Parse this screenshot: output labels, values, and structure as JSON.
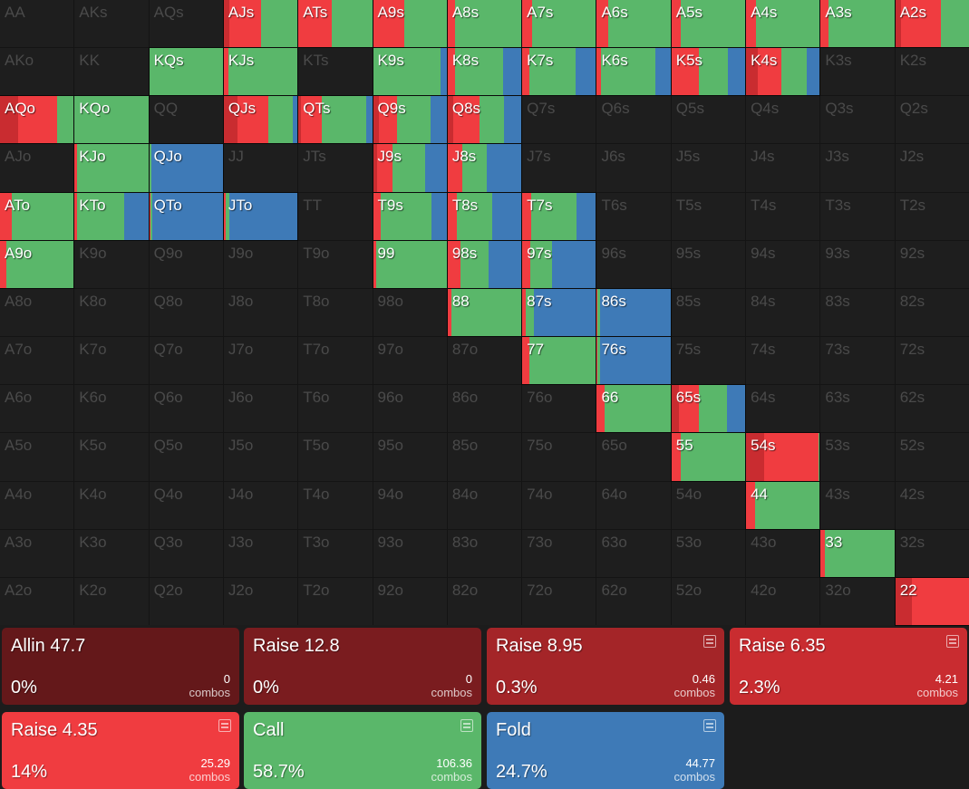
{
  "hands": [
    [
      "AA",
      "AKs",
      "AQs",
      "AJs",
      "ATs",
      "A9s",
      "A8s",
      "A7s",
      "A6s",
      "A5s",
      "A4s",
      "A3s",
      "A2s"
    ],
    [
      "AKo",
      "KK",
      "KQs",
      "KJs",
      "KTs",
      "K9s",
      "K8s",
      "K7s",
      "K6s",
      "K5s",
      "K4s",
      "K3s",
      "K2s"
    ],
    [
      "AQo",
      "KQo",
      "QQ",
      "QJs",
      "QTs",
      "Q9s",
      "Q8s",
      "Q7s",
      "Q6s",
      "Q5s",
      "Q4s",
      "Q3s",
      "Q2s"
    ],
    [
      "AJo",
      "KJo",
      "QJo",
      "JJ",
      "JTs",
      "J9s",
      "J8s",
      "J7s",
      "J6s",
      "J5s",
      "J4s",
      "J3s",
      "J2s"
    ],
    [
      "ATo",
      "KTo",
      "QTo",
      "JTo",
      "TT",
      "T9s",
      "T8s",
      "T7s",
      "T6s",
      "T5s",
      "T4s",
      "T3s",
      "T2s"
    ],
    [
      "A9o",
      "K9o",
      "Q9o",
      "J9o",
      "T9o",
      "99",
      "98s",
      "97s",
      "96s",
      "95s",
      "94s",
      "93s",
      "92s"
    ],
    [
      "A8o",
      "K8o",
      "Q8o",
      "J8o",
      "T8o",
      "98o",
      "88",
      "87s",
      "86s",
      "85s",
      "84s",
      "83s",
      "82s"
    ],
    [
      "A7o",
      "K7o",
      "Q7o",
      "J7o",
      "T7o",
      "97o",
      "87o",
      "77",
      "76s",
      "75s",
      "74s",
      "73s",
      "72s"
    ],
    [
      "A6o",
      "K6o",
      "Q6o",
      "J6o",
      "T6o",
      "96o",
      "86o",
      "76o",
      "66",
      "65s",
      "64s",
      "63s",
      "62s"
    ],
    [
      "A5o",
      "K5o",
      "Q5o",
      "J5o",
      "T5o",
      "95o",
      "85o",
      "75o",
      "65o",
      "55",
      "54s",
      "53s",
      "52s"
    ],
    [
      "A4o",
      "K4o",
      "Q4o",
      "J4o",
      "T4o",
      "94o",
      "84o",
      "74o",
      "64o",
      "54o",
      "44",
      "43s",
      "42s"
    ],
    [
      "A3o",
      "K3o",
      "Q3o",
      "J3o",
      "T3o",
      "93o",
      "83o",
      "73o",
      "63o",
      "53o",
      "43o",
      "33",
      "32s"
    ],
    [
      "A2o",
      "K2o",
      "Q2o",
      "J2o",
      "T2o",
      "92o",
      "82o",
      "72o",
      "62o",
      "52o",
      "42o",
      "32o",
      "22"
    ]
  ],
  "strategy_order": [
    "raise_6_35",
    "raise_4_35",
    "call",
    "fold"
  ],
  "strategy_colors": [
    "#c92c30",
    "#f03c40",
    "#5ab76a",
    "#3e7ab7"
  ],
  "strategies": {
    "AJs": [
      0.07,
      0.44,
      0.49,
      0
    ],
    "ATs": [
      0,
      0.45,
      0.55,
      0
    ],
    "A9s": [
      0,
      0.43,
      0.57,
      0
    ],
    "A8s": [
      0,
      0.1,
      0.9,
      0
    ],
    "A7s": [
      0,
      0.13,
      0.87,
      0
    ],
    "A6s": [
      0,
      0.16,
      0.84,
      0
    ],
    "A5s": [
      0,
      0.13,
      0.87,
      0
    ],
    "A4s": [
      0,
      0.13,
      0.87,
      0
    ],
    "A3s": [
      0,
      0.11,
      0.89,
      0
    ],
    "A2s": [
      0.08,
      0.54,
      0.38,
      0
    ],
    "KQs": [
      0,
      0.01,
      0.99,
      0
    ],
    "KJs": [
      0,
      0.06,
      0.94,
      0
    ],
    "K9s": [
      0,
      0,
      0.92,
      0.08
    ],
    "K8s": [
      0,
      0.1,
      0.65,
      0.25
    ],
    "K7s": [
      0,
      0.1,
      0.63,
      0.27
    ],
    "K6s": [
      0,
      0.06,
      0.74,
      0.2
    ],
    "K5s": [
      0,
      0.37,
      0.39,
      0.24
    ],
    "K4s": [
      0.16,
      0.32,
      0.34,
      0.18
    ],
    "AQo": [
      0.25,
      0.52,
      0.23,
      0
    ],
    "KQo": [
      0,
      0,
      1,
      0
    ],
    "QJs": [
      0.19,
      0.41,
      0.33,
      0.07
    ],
    "QTs": [
      0.03,
      0.29,
      0.6,
      0.08
    ],
    "Q9s": [
      0.08,
      0.25,
      0.45,
      0.22
    ],
    "Q8s": [
      0.07,
      0.36,
      0.33,
      0.24
    ],
    "KJo": [
      0,
      0.03,
      0.97,
      0
    ],
    "QJo": [
      0,
      0.01,
      0.02,
      0.97
    ],
    "J9s": [
      0.05,
      0.21,
      0.45,
      0.29
    ],
    "J8s": [
      0,
      0.2,
      0.33,
      0.47
    ],
    "ATo": [
      0,
      0.16,
      0.84,
      0
    ],
    "KTo": [
      0,
      0.03,
      0.64,
      0.33
    ],
    "QTo": [
      0,
      0.02,
      0.02,
      0.96
    ],
    "JTo": [
      0,
      0.02,
      0.06,
      0.92
    ],
    "T9s": [
      0,
      0.11,
      0.68,
      0.21
    ],
    "T8s": [
      0,
      0.12,
      0.49,
      0.39
    ],
    "T7s": [
      0,
      0.12,
      0.62,
      0.26
    ],
    "A9o": [
      0,
      0.08,
      0.92,
      0
    ],
    "99": [
      0,
      0.04,
      0.96,
      0
    ],
    "98s": [
      0,
      0.18,
      0.38,
      0.44
    ],
    "97s": [
      0,
      0.11,
      0.3,
      0.59
    ],
    "88": [
      0,
      0.05,
      0.95,
      0
    ],
    "87s": [
      0,
      0.05,
      0.11,
      0.84
    ],
    "86s": [
      0,
      0.01,
      0.03,
      0.96
    ],
    "77": [
      0,
      0.1,
      0.9,
      0
    ],
    "76s": [
      0,
      0.01,
      0.03,
      0.96
    ],
    "66": [
      0,
      0.1,
      0.9,
      0
    ],
    "65s": [
      0.1,
      0.27,
      0.38,
      0.25
    ],
    "55": [
      0,
      0.13,
      0.87,
      0
    ],
    "54s": [
      0.24,
      0.74,
      0.02,
      0
    ],
    "44": [
      0,
      0.12,
      0.88,
      0
    ],
    "33": [
      0,
      0.06,
      0.94,
      0
    ],
    "22": [
      0.22,
      0.78,
      0,
      0
    ]
  },
  "actions": [
    {
      "name": "Allin 47.7",
      "pct": "0%",
      "combos": "0",
      "unit": "combos",
      "color": "#64181a",
      "icon": "stats-icon",
      "show_icon": false
    },
    {
      "name": "Raise 12.8",
      "pct": "0%",
      "combos": "0",
      "unit": "combos",
      "color": "#7a1c1f",
      "icon": "stats-icon",
      "show_icon": false
    },
    {
      "name": "Raise 8.95",
      "pct": "0.3%",
      "combos": "0.46",
      "unit": "combos",
      "color": "#a42528",
      "icon": "stats-icon",
      "show_icon": true
    },
    {
      "name": "Raise 6.35",
      "pct": "2.3%",
      "combos": "4.21",
      "unit": "combos",
      "color": "#c92c30",
      "icon": "stats-icon",
      "show_icon": true
    },
    {
      "name": "Raise 4.35",
      "pct": "14%",
      "combos": "25.29",
      "unit": "combos",
      "color": "#f03c40",
      "icon": "stats-icon",
      "show_icon": true
    },
    {
      "name": "Call",
      "pct": "58.7%",
      "combos": "106.36",
      "unit": "combos",
      "color": "#5ab76a",
      "icon": "stats-icon",
      "show_icon": true
    },
    {
      "name": "Fold",
      "pct": "24.7%",
      "combos": "44.77",
      "unit": "combos",
      "color": "#3e7ab7",
      "icon": "stats-icon",
      "show_icon": true
    }
  ]
}
